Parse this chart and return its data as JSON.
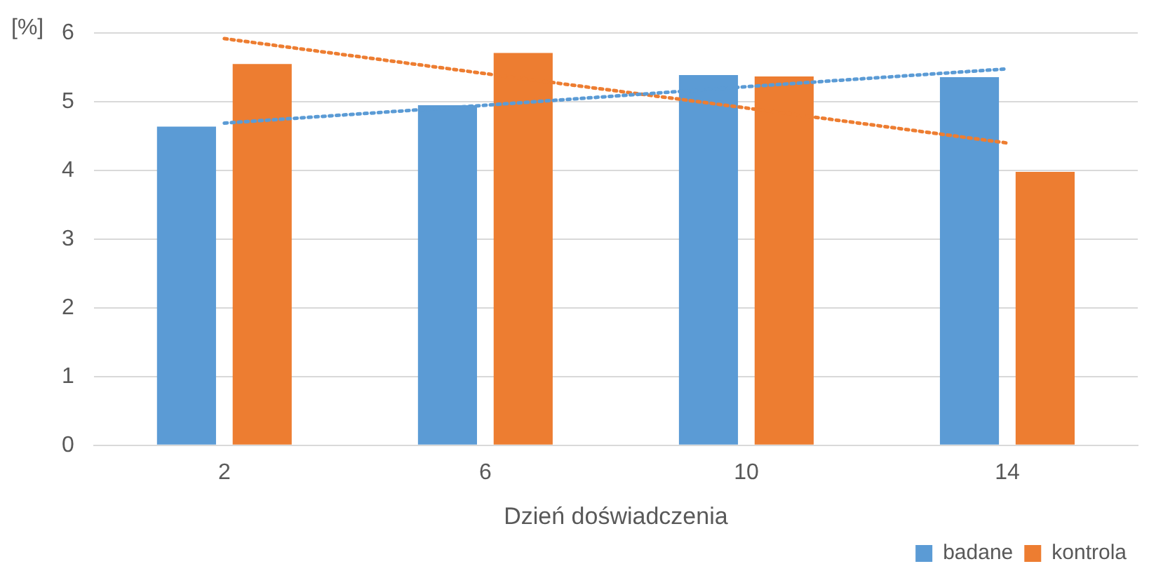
{
  "chart_data": {
    "type": "bar",
    "ylabel": "[%]",
    "xlabel": "Dzień doświadczenia",
    "categories": [
      "2",
      "6",
      "10",
      "14"
    ],
    "series": [
      {
        "name": "badane",
        "color": "#5b9bd5",
        "values": [
          4.64,
          4.95,
          5.39,
          5.36
        ]
      },
      {
        "name": "kontrola",
        "color": "#ed7d31",
        "values": [
          5.55,
          5.71,
          5.37,
          3.98
        ]
      },
      {
        "type": "line",
        "color": "#5b9bd5",
        "values": [
          4.69,
          4.95,
          5.22,
          5.48
        ],
        "line_style": "dotted",
        "marker": "none"
      },
      {
        "type": "line",
        "color": "#ed7d31",
        "values": [
          5.92,
          5.41,
          4.91,
          4.4
        ],
        "line_style": "dotted",
        "marker": "none"
      }
    ],
    "ylim": [
      0,
      6
    ],
    "yticks": [
      0,
      1,
      2,
      3,
      4,
      5,
      6
    ],
    "grid": "y",
    "legend": "bottom right"
  }
}
